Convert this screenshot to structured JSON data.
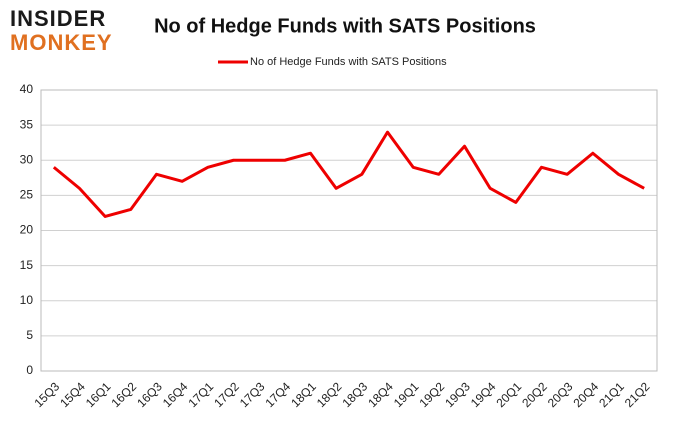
{
  "logo": {
    "line1": "INSIDER",
    "line2": "MONKEY"
  },
  "chart_data": {
    "type": "line",
    "title": "No of Hedge Funds with SATS Positions",
    "categories": [
      "15Q3",
      "15Q4",
      "16Q1",
      "16Q2",
      "16Q3",
      "16Q4",
      "17Q1",
      "17Q2",
      "17Q3",
      "17Q4",
      "18Q1",
      "18Q2",
      "18Q3",
      "18Q4",
      "19Q1",
      "19Q2",
      "19Q3",
      "19Q4",
      "20Q1",
      "20Q2",
      "20Q3",
      "20Q4",
      "21Q1",
      "21Q2"
    ],
    "series": [
      {
        "name": "No of Hedge Funds with SATS Positions",
        "color": "#ee0000",
        "values": [
          29,
          26,
          22,
          23,
          28,
          27,
          29,
          30,
          30,
          30,
          31,
          26,
          28,
          34,
          29,
          28,
          32,
          26,
          24,
          29,
          28,
          31,
          28,
          26
        ]
      }
    ],
    "ylim": [
      0,
      40
    ],
    "yticks": [
      0,
      5,
      10,
      15,
      20,
      25,
      30,
      35,
      40
    ],
    "grid": true,
    "legend": "top"
  }
}
